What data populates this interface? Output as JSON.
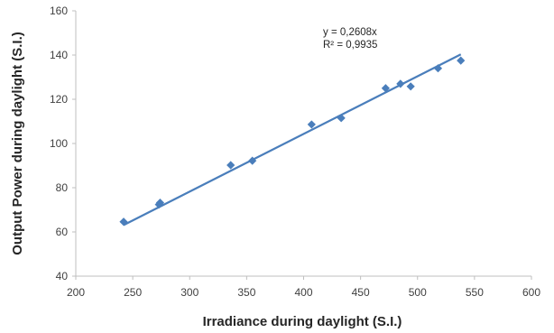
{
  "chart_data": {
    "type": "scatter",
    "xlabel": "Irradiance during daylight (S.I.)",
    "ylabel": "Output Power during daylight (S.I.)",
    "xlim": [
      200,
      600
    ],
    "ylim": [
      40,
      160
    ],
    "x_ticks": [
      200,
      250,
      300,
      350,
      400,
      450,
      500,
      550,
      600
    ],
    "y_ticks": [
      40,
      60,
      80,
      100,
      120,
      140,
      160
    ],
    "grid": false,
    "marker": "diamond",
    "colors": {
      "marker": "#4a7ebb",
      "trendline": "#4a7ebb",
      "axis": "#bfbfbf"
    },
    "series": [
      {
        "points": [
          [
            242,
            64.6
          ],
          [
            273,
            72.4
          ],
          [
            274,
            73.2
          ],
          [
            336,
            90.2
          ],
          [
            355,
            92.2
          ],
          [
            407,
            108.6
          ],
          [
            433,
            111.5
          ],
          [
            472,
            125.0
          ],
          [
            485,
            127.0
          ],
          [
            494,
            125.8
          ],
          [
            518,
            134.0
          ],
          [
            538,
            137.5
          ]
        ]
      }
    ],
    "trendline": {
      "slope": 0.2608,
      "intercept": 0,
      "x_range": [
        242,
        538
      ],
      "equation_label": "y = 0,2608x",
      "r2_label": "R² = 0,9935"
    }
  }
}
